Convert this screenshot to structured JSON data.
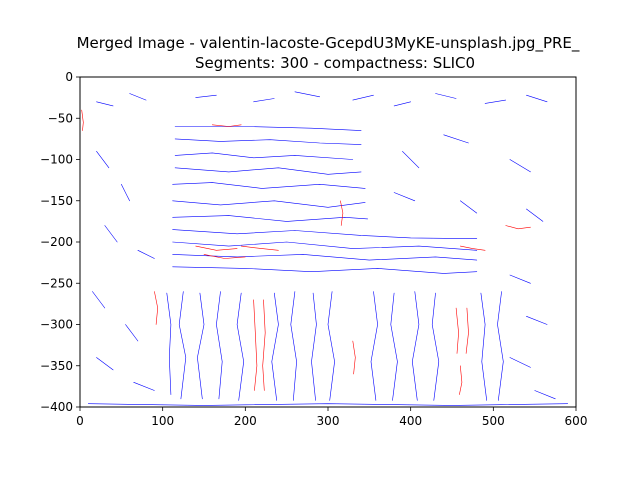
{
  "chart_data": {
    "type": "line",
    "title_line1": "Merged Image - valentin-lacoste-GcepdU3MyKE-unsplash.jpg_PRE_",
    "title_line2": "Segments: 300 - compactness: SLIC0",
    "xlim": [
      0,
      600
    ],
    "ylim": [
      -400,
      0
    ],
    "x_ticks": [
      0,
      100,
      200,
      300,
      400,
      500,
      600
    ],
    "y_ticks": [
      0,
      -50,
      -100,
      -150,
      -200,
      -250,
      -300,
      -350,
      -400
    ],
    "x_tick_labels": [
      "0",
      "100",
      "200",
      "300",
      "400",
      "500",
      "600"
    ],
    "y_tick_labels": [
      "0",
      "−50",
      "−100",
      "−150",
      "−200",
      "−250",
      "−300",
      "−350",
      "−400"
    ],
    "grid": false,
    "legend": "none",
    "series": [
      {
        "color": "#0000ff",
        "lines": [
          [
            [
              115,
              -60
            ],
            [
              200,
              -60
            ],
            [
              280,
              -62
            ],
            [
              340,
              -65
            ]
          ],
          [
            [
              115,
              -75
            ],
            [
              170,
              -78
            ],
            [
              230,
              -76
            ],
            [
              290,
              -80
            ],
            [
              340,
              -82
            ]
          ],
          [
            [
              115,
              -95
            ],
            [
              160,
              -92
            ],
            [
              210,
              -98
            ],
            [
              260,
              -95
            ],
            [
              330,
              -100
            ]
          ],
          [
            [
              115,
              -110
            ],
            [
              180,
              -115
            ],
            [
              240,
              -110
            ],
            [
              300,
              -118
            ],
            [
              340,
              -115
            ]
          ],
          [
            [
              112,
              -130
            ],
            [
              160,
              -128
            ],
            [
              220,
              -135
            ],
            [
              290,
              -130
            ],
            [
              345,
              -135
            ]
          ],
          [
            [
              112,
              -150
            ],
            [
              170,
              -155
            ],
            [
              235,
              -150
            ],
            [
              300,
              -158
            ],
            [
              345,
              -152
            ]
          ],
          [
            [
              112,
              -170
            ],
            [
              180,
              -168
            ],
            [
              250,
              -175
            ],
            [
              320,
              -170
            ],
            [
              348,
              -172
            ]
          ],
          [
            [
              112,
              -185
            ],
            [
              190,
              -190
            ],
            [
              260,
              -186
            ],
            [
              340,
              -192
            ],
            [
              400,
              -195
            ],
            [
              480,
              -196
            ]
          ],
          [
            [
              112,
              -200
            ],
            [
              180,
              -205
            ],
            [
              250,
              -200
            ],
            [
              330,
              -208
            ],
            [
              410,
              -205
            ],
            [
              480,
              -210
            ]
          ],
          [
            [
              112,
              -215
            ],
            [
              190,
              -218
            ],
            [
              270,
              -215
            ],
            [
              350,
              -222
            ],
            [
              430,
              -218
            ],
            [
              480,
              -222
            ]
          ],
          [
            [
              112,
              -230
            ],
            [
              200,
              -232
            ],
            [
              280,
              -236
            ],
            [
              360,
              -232
            ],
            [
              440,
              -238
            ],
            [
              480,
              -236
            ]
          ],
          [
            [
              105,
              -262
            ],
            [
              110,
              -300
            ],
            [
              108,
              -340
            ],
            [
              110,
              -385
            ]
          ],
          [
            [
              125,
              -260
            ],
            [
              120,
              -300
            ],
            [
              128,
              -340
            ],
            [
              122,
              -390
            ]
          ],
          [
            [
              145,
              -262
            ],
            [
              150,
              -300
            ],
            [
              142,
              -340
            ],
            [
              148,
              -390
            ]
          ],
          [
            [
              170,
              -260
            ],
            [
              165,
              -300
            ],
            [
              172,
              -345
            ],
            [
              168,
              -390
            ]
          ],
          [
            [
              195,
              -262
            ],
            [
              190,
              -300
            ],
            [
              198,
              -345
            ],
            [
              192,
              -392
            ]
          ],
          [
            [
              235,
              -262
            ],
            [
              240,
              -300
            ],
            [
              232,
              -345
            ],
            [
              238,
              -392
            ]
          ],
          [
            [
              260,
              -260
            ],
            [
              255,
              -300
            ],
            [
              262,
              -345
            ],
            [
              258,
              -392
            ]
          ],
          [
            [
              282,
              -262
            ],
            [
              286,
              -300
            ],
            [
              280,
              -345
            ],
            [
              285,
              -392
            ]
          ],
          [
            [
              305,
              -260
            ],
            [
              300,
              -300
            ],
            [
              308,
              -345
            ],
            [
              302,
              -392
            ]
          ],
          [
            [
              355,
              -260
            ],
            [
              360,
              -300
            ],
            [
              352,
              -345
            ],
            [
              358,
              -392
            ]
          ],
          [
            [
              380,
              -262
            ],
            [
              376,
              -300
            ],
            [
              384,
              -345
            ],
            [
              378,
              -392
            ]
          ],
          [
            [
              405,
              -260
            ],
            [
              410,
              -300
            ],
            [
              402,
              -345
            ],
            [
              408,
              -392
            ]
          ],
          [
            [
              430,
              -262
            ],
            [
              426,
              -300
            ],
            [
              434,
              -345
            ],
            [
              428,
              -392
            ]
          ],
          [
            [
              485,
              -262
            ],
            [
              490,
              -300
            ],
            [
              486,
              -345
            ],
            [
              492,
              -392
            ]
          ],
          [
            [
              510,
              -260
            ],
            [
              505,
              -300
            ],
            [
              512,
              -345
            ],
            [
              506,
              -392
            ]
          ],
          [
            [
              20,
              -30
            ],
            [
              40,
              -35
            ]
          ],
          [
            [
              60,
              -20
            ],
            [
              80,
              -28
            ]
          ],
          [
            [
              140,
              -25
            ],
            [
              165,
              -22
            ]
          ],
          [
            [
              210,
              -30
            ],
            [
              235,
              -26
            ]
          ],
          [
            [
              260,
              -18
            ],
            [
              290,
              -24
            ]
          ],
          [
            [
              330,
              -28
            ],
            [
              355,
              -22
            ]
          ],
          [
            [
              380,
              -35
            ],
            [
              400,
              -30
            ]
          ],
          [
            [
              430,
              -20
            ],
            [
              455,
              -26
            ]
          ],
          [
            [
              490,
              -32
            ],
            [
              515,
              -28
            ]
          ],
          [
            [
              540,
              -22
            ],
            [
              565,
              -30
            ]
          ],
          [
            [
              20,
              -90
            ],
            [
              35,
              -110
            ]
          ],
          [
            [
              50,
              -130
            ],
            [
              60,
              -150
            ]
          ],
          [
            [
              30,
              -180
            ],
            [
              45,
              -200
            ]
          ],
          [
            [
              70,
              -210
            ],
            [
              90,
              -220
            ]
          ],
          [
            [
              15,
              -260
            ],
            [
              30,
              -280
            ]
          ],
          [
            [
              55,
              -300
            ],
            [
              70,
              -320
            ]
          ],
          [
            [
              20,
              -340
            ],
            [
              40,
              -355
            ]
          ],
          [
            [
              65,
              -370
            ],
            [
              90,
              -380
            ]
          ],
          [
            [
              390,
              -90
            ],
            [
              410,
              -110
            ]
          ],
          [
            [
              440,
              -70
            ],
            [
              470,
              -80
            ]
          ],
          [
            [
              520,
              -100
            ],
            [
              545,
              -115
            ]
          ],
          [
            [
              380,
              -140
            ],
            [
              405,
              -150
            ]
          ],
          [
            [
              460,
              -150
            ],
            [
              480,
              -165
            ]
          ],
          [
            [
              540,
              -160
            ],
            [
              560,
              -175
            ]
          ],
          [
            [
              520,
              -240
            ],
            [
              545,
              -250
            ]
          ],
          [
            [
              540,
              -290
            ],
            [
              565,
              -300
            ]
          ],
          [
            [
              520,
              -340
            ],
            [
              545,
              -352
            ]
          ],
          [
            [
              550,
              -380
            ],
            [
              575,
              -390
            ]
          ],
          [
            [
              10,
              -396
            ],
            [
              150,
              -398
            ],
            [
              300,
              -396
            ],
            [
              450,
              -398
            ],
            [
              590,
              -396
            ]
          ]
        ]
      },
      {
        "color": "#ff0000",
        "lines": [
          [
            [
              2,
              -40
            ],
            [
              4,
              -55
            ],
            [
              3,
              -65
            ]
          ],
          [
            [
              160,
              -58
            ],
            [
              180,
              -60
            ],
            [
              195,
              -58
            ]
          ],
          [
            [
              315,
              -150
            ],
            [
              318,
              -165
            ],
            [
              316,
              -180
            ]
          ],
          [
            [
              140,
              -205
            ],
            [
              165,
              -210
            ],
            [
              190,
              -208
            ]
          ],
          [
            [
              150,
              -215
            ],
            [
              175,
              -220
            ],
            [
              200,
              -218
            ]
          ],
          [
            [
              195,
              -205
            ],
            [
              220,
              -208
            ],
            [
              240,
              -210
            ]
          ],
          [
            [
              90,
              -260
            ],
            [
              94,
              -280
            ],
            [
              92,
              -300
            ]
          ],
          [
            [
              210,
              -270
            ],
            [
              212,
              -310
            ],
            [
              214,
              -350
            ],
            [
              211,
              -380
            ]
          ],
          [
            [
              222,
              -270
            ],
            [
              224,
              -310
            ],
            [
              221,
              -350
            ],
            [
              223,
              -380
            ]
          ],
          [
            [
              330,
              -320
            ],
            [
              333,
              -340
            ],
            [
              331,
              -360
            ]
          ],
          [
            [
              455,
              -280
            ],
            [
              458,
              -310
            ],
            [
              456,
              -335
            ]
          ],
          [
            [
              468,
              -280
            ],
            [
              470,
              -310
            ],
            [
              467,
              -335
            ]
          ],
          [
            [
              460,
              -350
            ],
            [
              462,
              -370
            ],
            [
              459,
              -385
            ]
          ],
          [
            [
              460,
              -205
            ],
            [
              475,
              -208
            ],
            [
              490,
              -210
            ]
          ],
          [
            [
              515,
              -180
            ],
            [
              530,
              -184
            ],
            [
              545,
              -182
            ]
          ]
        ]
      }
    ]
  }
}
